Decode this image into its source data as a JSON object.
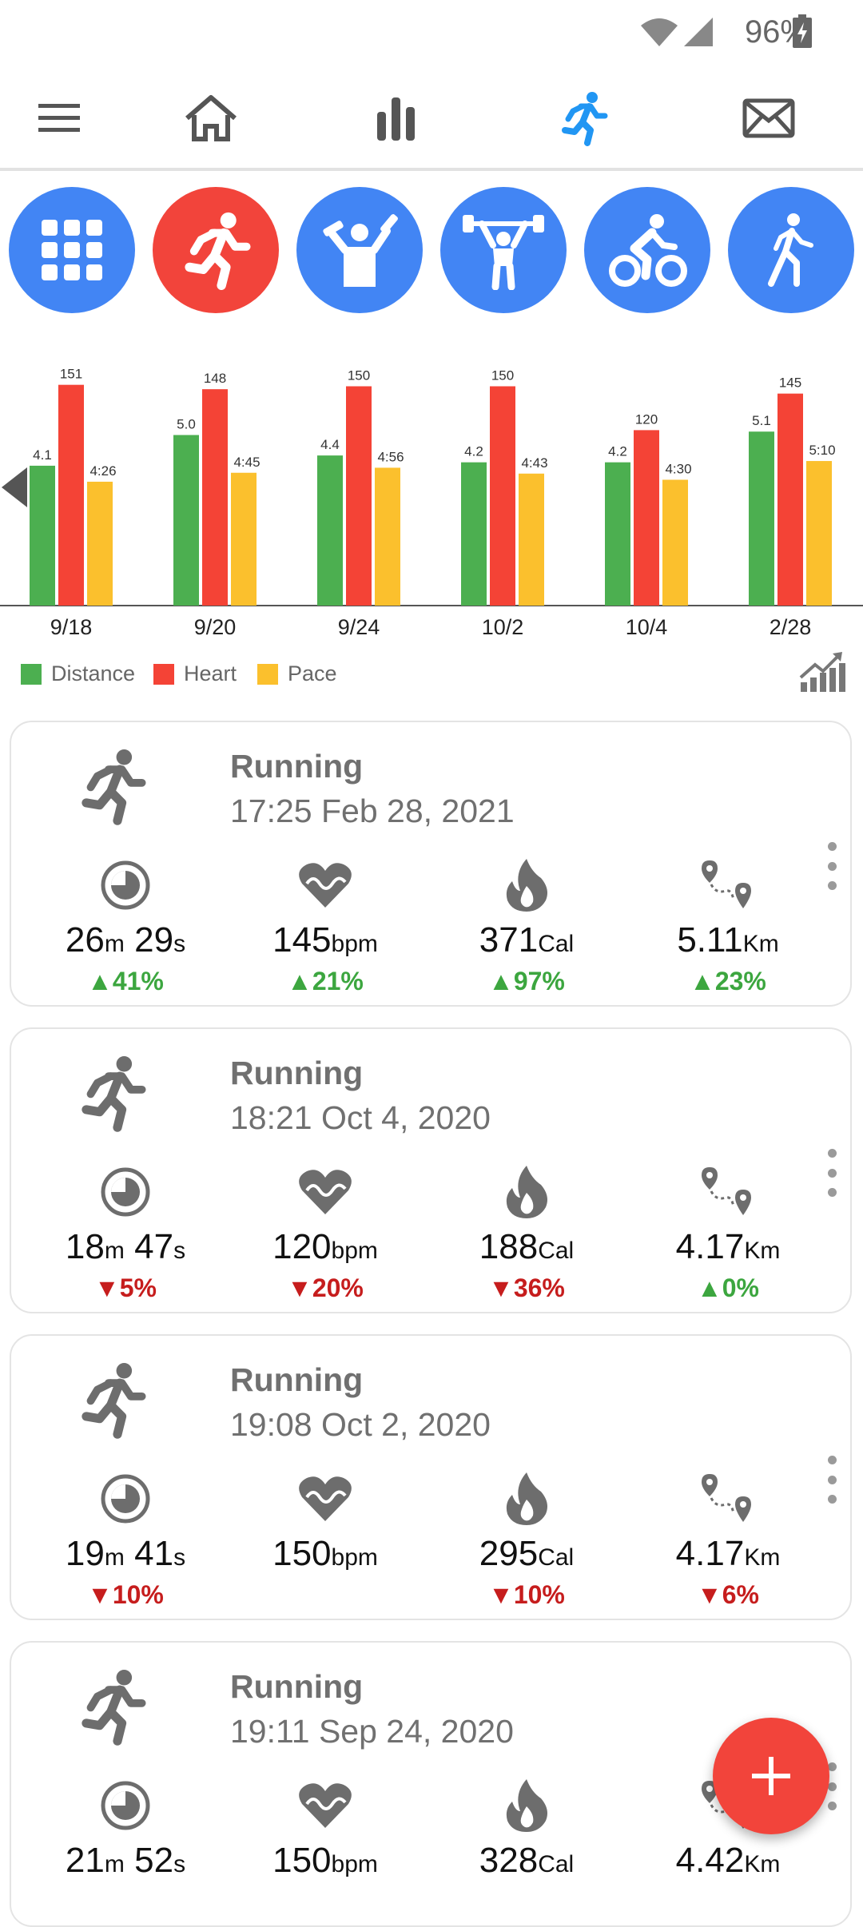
{
  "status_bar": {
    "battery": "96%"
  },
  "nav": {
    "items": [
      "menu-icon",
      "home-icon",
      "stats-icon",
      "running-icon",
      "mail-icon"
    ],
    "active": "running-icon",
    "active_color": "#2196f3"
  },
  "categories": [
    {
      "name": "all-activities-icon",
      "active": false
    },
    {
      "name": "running-icon",
      "active": true
    },
    {
      "name": "dumbbell-icon",
      "active": false
    },
    {
      "name": "weightlifting-icon",
      "active": false
    },
    {
      "name": "cycling-icon",
      "active": false
    },
    {
      "name": "walking-icon",
      "active": false
    }
  ],
  "chart_data": {
    "type": "bar",
    "categories": [
      "9/18",
      "9/20",
      "9/24",
      "10/2",
      "10/4",
      "2/28"
    ],
    "series": [
      {
        "name": "Distance",
        "color": "#4caf50",
        "values": [
          4.1,
          5.0,
          4.4,
          4.2,
          4.2,
          5.1
        ],
        "labels": [
          "4.1",
          "5.0",
          "4.4",
          "4.2",
          "4.2",
          "5.1"
        ]
      },
      {
        "name": "Heart",
        "color": "#f44336",
        "values": [
          151,
          148,
          150,
          150,
          120,
          145
        ],
        "labels": [
          "151",
          "148",
          "150",
          "150",
          "120",
          "145"
        ]
      },
      {
        "name": "Pace",
        "color": "#fbc02d",
        "values": [
          4.43,
          4.75,
          4.93,
          4.72,
          4.5,
          5.17
        ],
        "labels": [
          "4:26",
          "4:45",
          "4:56",
          "4:43",
          "4:30",
          "5:10"
        ]
      }
    ],
    "legend": "bottom-left"
  },
  "activities": [
    {
      "title": "Running",
      "date": "17:25 Feb 28, 2021",
      "metrics": [
        {
          "value": "26",
          "u1": "m",
          "value2": "29",
          "u2": "s",
          "change": "41%",
          "dir": "up"
        },
        {
          "value": "145",
          "u1": "bpm",
          "change": "21%",
          "dir": "up"
        },
        {
          "value": "371",
          "u1": "Cal",
          "change": "97%",
          "dir": "up"
        },
        {
          "value": "5.11",
          "u1": "Km",
          "change": "23%",
          "dir": "up"
        }
      ]
    },
    {
      "title": "Running",
      "date": "18:21 Oct 4, 2020",
      "metrics": [
        {
          "value": "18",
          "u1": "m",
          "value2": "47",
          "u2": "s",
          "change": "5%",
          "dir": "down"
        },
        {
          "value": "120",
          "u1": "bpm",
          "change": "20%",
          "dir": "down"
        },
        {
          "value": "188",
          "u1": "Cal",
          "change": "36%",
          "dir": "down"
        },
        {
          "value": "4.17",
          "u1": "Km",
          "change": "0%",
          "dir": "up"
        }
      ]
    },
    {
      "title": "Running",
      "date": "19:08 Oct 2, 2020",
      "metrics": [
        {
          "value": "19",
          "u1": "m",
          "value2": "41",
          "u2": "s",
          "change": "10%",
          "dir": "down"
        },
        {
          "value": "150",
          "u1": "bpm",
          "change": "",
          "dir": ""
        },
        {
          "value": "295",
          "u1": "Cal",
          "change": "10%",
          "dir": "down"
        },
        {
          "value": "4.17",
          "u1": "Km",
          "change": "6%",
          "dir": "down"
        }
      ]
    },
    {
      "title": "Running",
      "date": "19:11 Sep 24, 2020",
      "metrics": [
        {
          "value": "21",
          "u1": "m",
          "value2": "52",
          "u2": "s",
          "change": "",
          "dir": ""
        },
        {
          "value": "150",
          "u1": "bpm",
          "change": "",
          "dir": ""
        },
        {
          "value": "328",
          "u1": "Cal",
          "change": "",
          "dir": ""
        },
        {
          "value": "4.42",
          "u1": "Km",
          "change": "",
          "dir": ""
        }
      ]
    }
  ]
}
